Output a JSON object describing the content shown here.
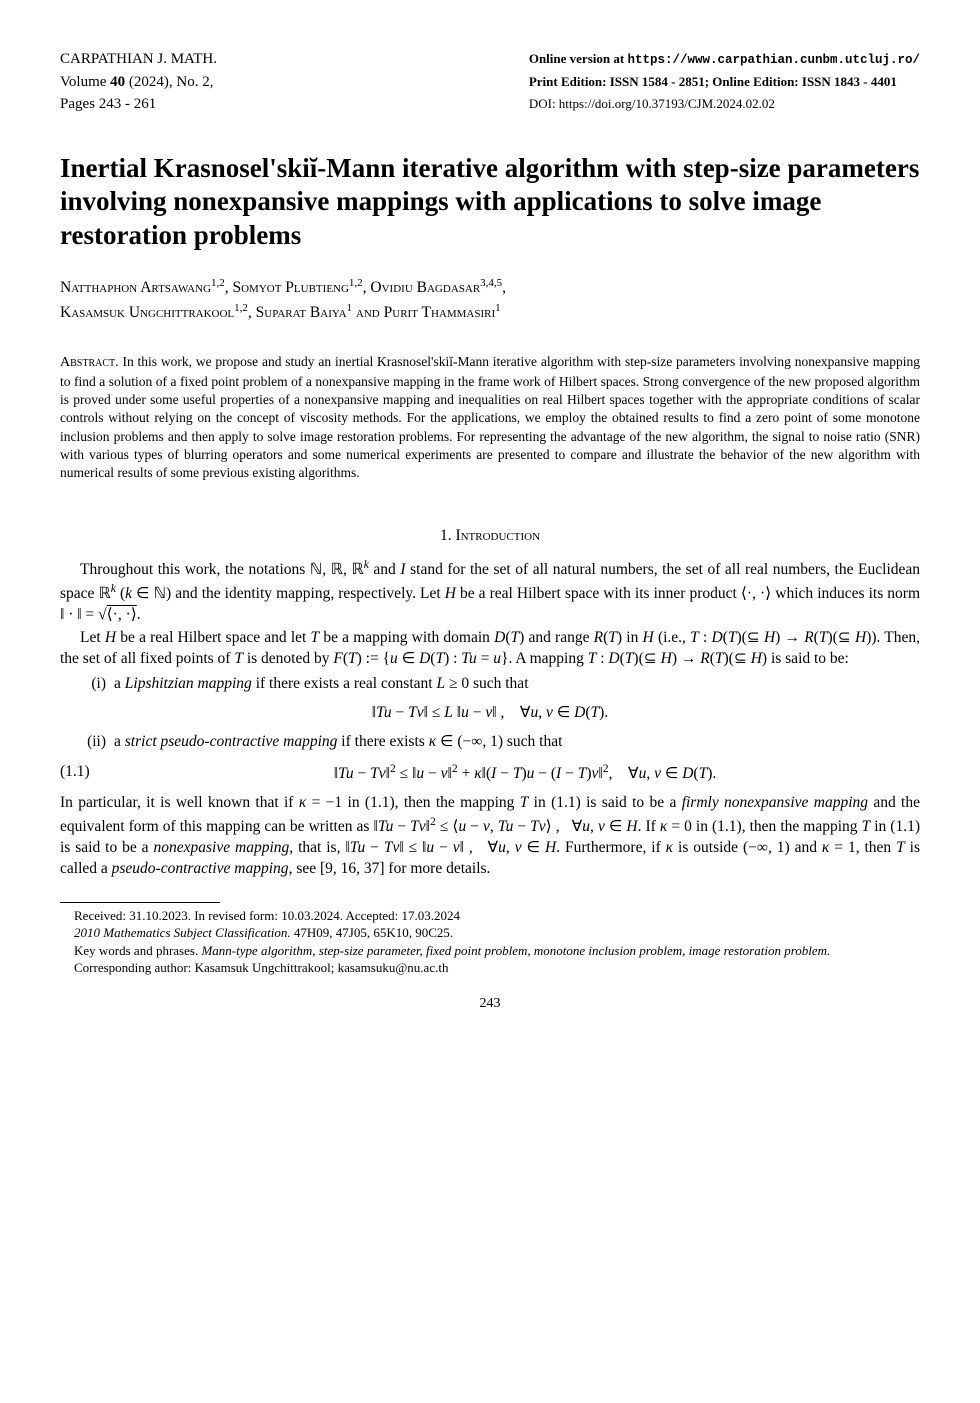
{
  "header": {
    "journal": "CARPATHIAN J. MATH.",
    "volume_line": "Volume 40 (2024), No. 2,",
    "pages_line": "Pages 243 - 261",
    "online_prefix": "Online version at ",
    "online_url": "https://www.carpathian.cunbm.utcluj.ro/",
    "print_line": "Print Edition: ISSN 1584 - 2851; Online Edition: ISSN 1843 - 4401",
    "doi_line": "DOI: https://doi.org/10.37193/CJM.2024.02.02"
  },
  "title": "Inertial Krasnosel'skiĭ-Mann iterative algorithm with step-size parameters involving nonexpansive mappings with applications to solve image restoration problems",
  "authors": {
    "line1_a": "Natthaphon Artsawang",
    "line1_a_sup": "1,2",
    "line1_b": "Somyot Plubtieng",
    "line1_b_sup": "1,2",
    "line1_c": "Ovidiu Bagdasar",
    "line1_c_sup": "3,4,5",
    "line2_a": "Kasamsuk Ungchittrakool",
    "line2_a_sup": "1,2",
    "line2_b": "Suparat Baiya",
    "line2_b_sup": "1",
    "line2_and": " and ",
    "line2_c": "Purit Thammasiri",
    "line2_c_sup": "1"
  },
  "abstract": {
    "label": "Abstract.",
    "text": " In this work, we propose and study an inertial Krasnosel'skiĭ-Mann iterative algorithm with step-size parameters involving nonexpansive mapping to find a solution of a fixed point problem of a nonexpansive mapping in the frame work of Hilbert spaces. Strong convergence of the new proposed algorithm is proved under some useful properties of a nonexpansive mapping and inequalities on real Hilbert spaces together with the appropriate conditions of scalar controls without relying on the concept of viscosity methods. For the applications, we employ the obtained results to find a zero point of some monotone inclusion problems and then apply to solve image restoration problems. For representing the advantage of the new algorithm, the signal to noise ratio (SNR) with various types of blurring operators and some numerical experiments are presented to compare and illustrate the behavior of the new algorithm with numerical results of some previous existing algorithms."
  },
  "section1": {
    "number": "1.",
    "title": "Introduction"
  },
  "intro": {
    "p1_a": "Throughout this work, the notations ",
    "p1_b": " and ",
    "p1_c": " stand for the set of all natural numbers, the set of all real numbers, the Euclidean space ",
    "p1_d": " and the identity mapping, respectively. Let ",
    "p1_e": " be a real Hilbert space with its inner product ",
    "p1_f": " which induces its norm ",
    "p2_a": "Let ",
    "p2_b": " be a real Hilbert space and let ",
    "p2_c": " be a mapping with domain ",
    "p2_d": " and range ",
    "p2_e": " in ",
    "p2_f": " (i.e., ",
    "p2_g": "). Then, the set of all fixed points of ",
    "p2_h": " is denoted by ",
    "p2_i": ". A mapping ",
    "p2_j": " is said to be:",
    "item_i_label": "(i)",
    "item_i_a": "a ",
    "item_i_em": "Lipshitzian mapping",
    "item_i_b": " if there exists a real constant ",
    "item_i_c": " such that",
    "eq_i": "‖Tu − Tv‖ ≤ L ‖u − v‖ ,    ∀u, v ∈ D(T).",
    "item_ii_label": "(ii)",
    "item_ii_a": "a ",
    "item_ii_em": "strict pseudo-contractive mapping",
    "item_ii_b": " if there exists ",
    "item_ii_c": " such that",
    "eq_11_num": "(1.1)",
    "p3_a": "In particular, it is well known that if ",
    "p3_b": " in (1.1), then the mapping ",
    "p3_c": " in (1.1) is said to be a ",
    "p3_em1": "firmly nonexpansive mapping",
    "p3_d": " and the equivalent form of this mapping can be written as ",
    "p3_e": ". If ",
    "p3_f": " in (1.1), then the mapping ",
    "p3_g": " in (1.1) is said to be a ",
    "p3_em2": "nonexpasive mapping",
    "p3_h": ", that is, ",
    "p3_i": ". Furthermore, if ",
    "p3_j": " is outside ",
    "p3_k": " and ",
    "p3_l": ", then ",
    "p3_m": " is called a ",
    "p3_em3": "pseudo-contractive mapping",
    "p3_n": ", see [9, 16, 37] for more details."
  },
  "footnotes": {
    "received": "Received: 31.10.2023. In revised form: 10.03.2024. Accepted: 17.03.2024",
    "msc_label": "2010 Mathematics Subject Classification.",
    "msc": " 47H09, 47J05, 65K10, 90C25.",
    "kw_label": "Key words and phrases.",
    "kw": " Mann-type algorithm, step-size parameter, fixed point problem, monotone inclusion problem, image restoration problem.",
    "corresponding": "Corresponding author: Kasamsuk Ungchittrakool; kasamsuku@nu.ac.th"
  },
  "pagenum": "243"
}
